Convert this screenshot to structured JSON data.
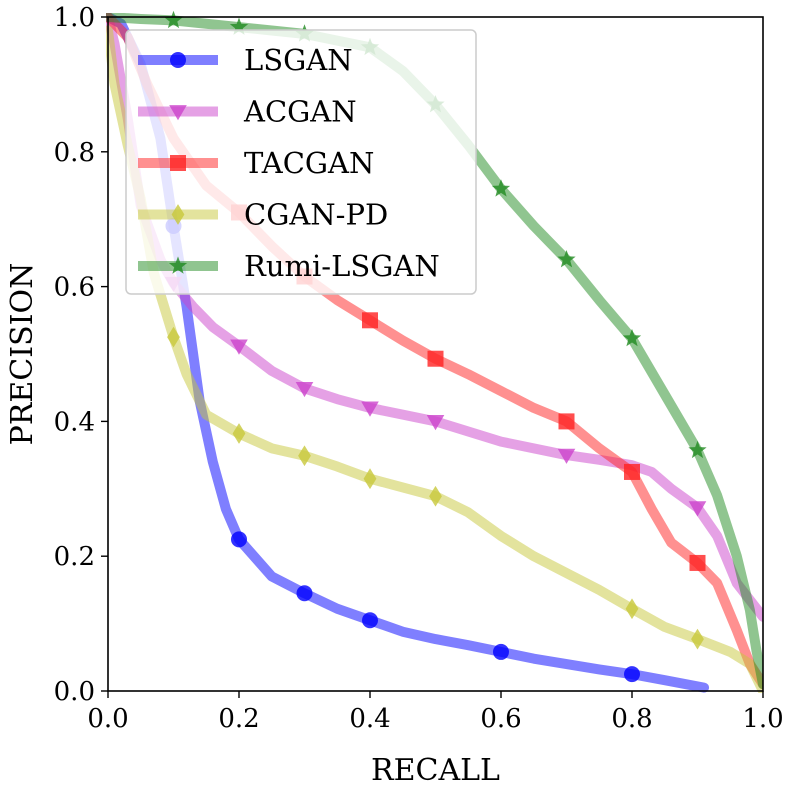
{
  "chart_data": {
    "type": "line",
    "title": "",
    "xlabel": "RECALL",
    "ylabel": "PRECISION",
    "xlim": [
      0,
      1
    ],
    "ylim": [
      0,
      1
    ],
    "xticks": [
      "0.0",
      "0.2",
      "0.4",
      "0.6",
      "0.8",
      "1.0"
    ],
    "yticks": [
      "0.0",
      "0.2",
      "0.4",
      "0.6",
      "0.8",
      "1.0"
    ],
    "grid": false,
    "legend_position": "top-left",
    "series": [
      {
        "name": "LSGAN",
        "color": "#0000ff",
        "marker": "circle",
        "points": [
          [
            0.0,
            1.0
          ],
          [
            0.02,
            0.99
          ],
          [
            0.05,
            0.93
          ],
          [
            0.08,
            0.82
          ],
          [
            0.1,
            0.69
          ],
          [
            0.12,
            0.57
          ],
          [
            0.14,
            0.43
          ],
          [
            0.16,
            0.34
          ],
          [
            0.18,
            0.27
          ],
          [
            0.2,
            0.225
          ],
          [
            0.25,
            0.17
          ],
          [
            0.3,
            0.145
          ],
          [
            0.35,
            0.122
          ],
          [
            0.4,
            0.105
          ],
          [
            0.45,
            0.088
          ],
          [
            0.5,
            0.077
          ],
          [
            0.55,
            0.068
          ],
          [
            0.6,
            0.058
          ],
          [
            0.65,
            0.048
          ],
          [
            0.7,
            0.04
          ],
          [
            0.75,
            0.032
          ],
          [
            0.8,
            0.025
          ],
          [
            0.85,
            0.016
          ],
          [
            0.91,
            0.005
          ]
        ],
        "marker_points": [
          [
            0.1,
            0.69
          ],
          [
            0.2,
            0.225
          ],
          [
            0.3,
            0.145
          ],
          [
            0.4,
            0.105
          ],
          [
            0.6,
            0.058
          ],
          [
            0.8,
            0.025
          ]
        ]
      },
      {
        "name": "ACGAN",
        "color": "#cc44cc",
        "marker": "triangle-down",
        "points": [
          [
            0.0,
            1.0
          ],
          [
            0.01,
            0.96
          ],
          [
            0.03,
            0.85
          ],
          [
            0.05,
            0.72
          ],
          [
            0.08,
            0.64
          ],
          [
            0.1,
            0.605
          ],
          [
            0.13,
            0.57
          ],
          [
            0.16,
            0.54
          ],
          [
            0.2,
            0.512
          ],
          [
            0.25,
            0.475
          ],
          [
            0.3,
            0.449
          ],
          [
            0.35,
            0.433
          ],
          [
            0.4,
            0.42
          ],
          [
            0.45,
            0.41
          ],
          [
            0.5,
            0.4
          ],
          [
            0.55,
            0.385
          ],
          [
            0.6,
            0.37
          ],
          [
            0.65,
            0.36
          ],
          [
            0.7,
            0.35
          ],
          [
            0.75,
            0.343
          ],
          [
            0.8,
            0.335
          ],
          [
            0.83,
            0.325
          ],
          [
            0.86,
            0.3
          ],
          [
            0.9,
            0.272
          ],
          [
            0.93,
            0.23
          ],
          [
            0.96,
            0.16
          ],
          [
            1.0,
            0.11
          ]
        ],
        "marker_points": [
          [
            0.1,
            0.605
          ],
          [
            0.2,
            0.512
          ],
          [
            0.3,
            0.449
          ],
          [
            0.4,
            0.42
          ],
          [
            0.5,
            0.4
          ],
          [
            0.7,
            0.35
          ],
          [
            0.9,
            0.272
          ]
        ]
      },
      {
        "name": "TACGAN",
        "color": "#ff2222",
        "marker": "square",
        "points": [
          [
            0.0,
            1.0
          ],
          [
            0.03,
            0.97
          ],
          [
            0.06,
            0.9
          ],
          [
            0.1,
            0.82
          ],
          [
            0.15,
            0.75
          ],
          [
            0.2,
            0.71
          ],
          [
            0.25,
            0.66
          ],
          [
            0.3,
            0.615
          ],
          [
            0.35,
            0.58
          ],
          [
            0.4,
            0.55
          ],
          [
            0.45,
            0.52
          ],
          [
            0.5,
            0.493
          ],
          [
            0.55,
            0.47
          ],
          [
            0.6,
            0.445
          ],
          [
            0.65,
            0.42
          ],
          [
            0.7,
            0.4
          ],
          [
            0.75,
            0.36
          ],
          [
            0.8,
            0.325
          ],
          [
            0.83,
            0.27
          ],
          [
            0.86,
            0.22
          ],
          [
            0.9,
            0.19
          ],
          [
            0.93,
            0.16
          ],
          [
            0.96,
            0.09
          ],
          [
            0.98,
            0.04
          ],
          [
            1.0,
            0.01
          ]
        ],
        "marker_points": [
          [
            0.2,
            0.71
          ],
          [
            0.3,
            0.615
          ],
          [
            0.4,
            0.55
          ],
          [
            0.5,
            0.493
          ],
          [
            0.7,
            0.4
          ],
          [
            0.8,
            0.325
          ],
          [
            0.9,
            0.19
          ]
        ]
      },
      {
        "name": "CGAN-PD",
        "color": "#c8c83c",
        "marker": "diamond",
        "points": [
          [
            0.0,
            0.98
          ],
          [
            0.01,
            0.9
          ],
          [
            0.03,
            0.81
          ],
          [
            0.05,
            0.73
          ],
          [
            0.07,
            0.62
          ],
          [
            0.1,
            0.525
          ],
          [
            0.12,
            0.47
          ],
          [
            0.15,
            0.41
          ],
          [
            0.2,
            0.382
          ],
          [
            0.25,
            0.36
          ],
          [
            0.3,
            0.349
          ],
          [
            0.35,
            0.333
          ],
          [
            0.4,
            0.315
          ],
          [
            0.45,
            0.302
          ],
          [
            0.5,
            0.289
          ],
          [
            0.55,
            0.265
          ],
          [
            0.6,
            0.23
          ],
          [
            0.65,
            0.2
          ],
          [
            0.7,
            0.175
          ],
          [
            0.75,
            0.15
          ],
          [
            0.8,
            0.122
          ],
          [
            0.85,
            0.095
          ],
          [
            0.9,
            0.077
          ],
          [
            0.95,
            0.058
          ],
          [
            0.98,
            0.04
          ],
          [
            1.0,
            0.0
          ]
        ],
        "marker_points": [
          [
            0.1,
            0.525
          ],
          [
            0.2,
            0.382
          ],
          [
            0.3,
            0.349
          ],
          [
            0.4,
            0.315
          ],
          [
            0.5,
            0.289
          ],
          [
            0.8,
            0.122
          ],
          [
            0.9,
            0.077
          ]
        ]
      },
      {
        "name": "Rumi-LSGAN",
        "color": "#228b22",
        "marker": "star",
        "points": [
          [
            0.0,
            1.0
          ],
          [
            0.05,
            0.997
          ],
          [
            0.1,
            0.995
          ],
          [
            0.15,
            0.99
          ],
          [
            0.2,
            0.985
          ],
          [
            0.25,
            0.98
          ],
          [
            0.3,
            0.975
          ],
          [
            0.35,
            0.965
          ],
          [
            0.4,
            0.955
          ],
          [
            0.45,
            0.92
          ],
          [
            0.5,
            0.87
          ],
          [
            0.55,
            0.81
          ],
          [
            0.6,
            0.745
          ],
          [
            0.65,
            0.69
          ],
          [
            0.7,
            0.64
          ],
          [
            0.75,
            0.58
          ],
          [
            0.8,
            0.523
          ],
          [
            0.85,
            0.44
          ],
          [
            0.9,
            0.357
          ],
          [
            0.93,
            0.29
          ],
          [
            0.96,
            0.2
          ],
          [
            0.98,
            0.12
          ],
          [
            0.99,
            0.06
          ],
          [
            1.0,
            0.01
          ]
        ],
        "marker_points": [
          [
            0.1,
            0.995
          ],
          [
            0.2,
            0.985
          ],
          [
            0.3,
            0.975
          ],
          [
            0.4,
            0.955
          ],
          [
            0.5,
            0.87
          ],
          [
            0.6,
            0.745
          ],
          [
            0.7,
            0.64
          ],
          [
            0.8,
            0.523
          ],
          [
            0.9,
            0.357
          ]
        ]
      }
    ]
  }
}
